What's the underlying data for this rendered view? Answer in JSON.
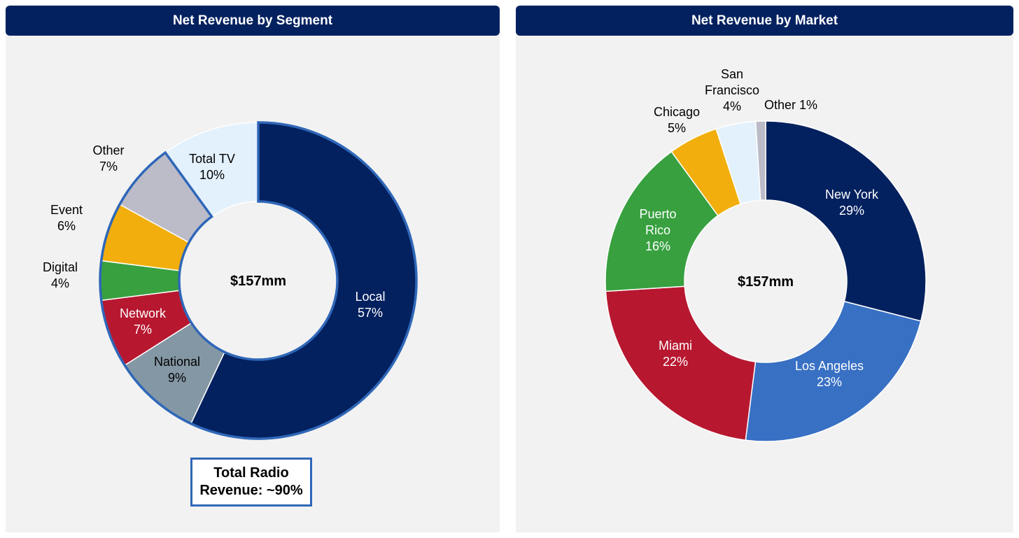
{
  "header_left": "Net Revenue by Segment",
  "header_right": "Net Revenue by Market",
  "radio_box": {
    "line1": "Total Radio",
    "line2": "Revenue: ~90%"
  },
  "chart_data": [
    {
      "type": "pie",
      "title": "Net Revenue by Segment",
      "center_label": "$157mm",
      "slices": [
        {
          "label": "Local",
          "pct": "57%",
          "value": 57,
          "color": "#03215f",
          "text_color": "#ffffff"
        },
        {
          "label": "National",
          "pct": "9%",
          "value": 9,
          "color": "#8497a4",
          "text_color": "#000000"
        },
        {
          "label": "Network",
          "pct": "7%",
          "value": 7,
          "color": "#b71830",
          "text_color": "#ffffff"
        },
        {
          "label": "Digital",
          "pct": "4%",
          "value": 4,
          "color": "#38a03f",
          "text_color": "#000000"
        },
        {
          "label": "Event",
          "pct": "6%",
          "value": 6,
          "color": "#f2ae0c",
          "text_color": "#000000"
        },
        {
          "label": "Other",
          "pct": "7%",
          "value": 7,
          "color": "#bcbcc8",
          "text_color": "#000000"
        },
        {
          "label": "Total TV",
          "pct": "10%",
          "value": 10,
          "color": "#e3f1fc",
          "text_color": "#000000"
        }
      ],
      "highlight": "Total Radio Revenue: ~90%"
    },
    {
      "type": "pie",
      "title": "Net Revenue by Market",
      "center_label": "$157mm",
      "slices": [
        {
          "label": "New York",
          "pct": "29%",
          "value": 29,
          "color": "#03215f",
          "text_color": "#ffffff"
        },
        {
          "label": "Los Angeles",
          "pct": "23%",
          "value": 23,
          "color": "#3870c4",
          "text_color": "#ffffff"
        },
        {
          "label": "Miami",
          "pct": "22%",
          "value": 22,
          "color": "#b71830",
          "text_color": "#ffffff"
        },
        {
          "label": "Puerto Rico",
          "pct": "16%",
          "value": 16,
          "color": "#38a03f",
          "text_color": "#ffffff"
        },
        {
          "label": "Chicago",
          "pct": "5%",
          "value": 5,
          "color": "#f2ae0c",
          "text_color": "#000000"
        },
        {
          "label": "San Francisco",
          "pct": "4%",
          "value": 4,
          "color": "#e3f1fc",
          "text_color": "#000000"
        },
        {
          "label": "Other",
          "pct": "1%",
          "value": 1,
          "color": "#bcbcc8",
          "text_color": "#000000"
        }
      ]
    }
  ]
}
